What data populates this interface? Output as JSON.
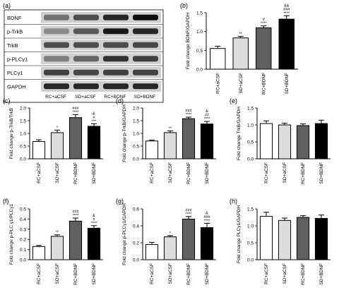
{
  "blot_panel": {
    "label": "(a)",
    "proteins": [
      "BDNF",
      "p-TrkB",
      "TrkB",
      "p-PLCγ1",
      "PLCγ1",
      "GAPDH"
    ],
    "lanes": [
      "RC+aCSF",
      "SD+aCSF",
      "RC+BDNF",
      "SD+BDNF"
    ]
  },
  "colors": {
    "bar_fills": [
      "#ffffff",
      "#dcdcdc",
      "#606060",
      "#000000"
    ],
    "stroke": "#000000"
  },
  "chart_data": [
    {
      "label": "(b)",
      "type": "bar",
      "categories": [
        "RC+aCSF",
        "SD+aCSF",
        "RC+BDNF",
        "SD+BDNF"
      ],
      "values": [
        0.55,
        0.83,
        1.1,
        1.33
      ],
      "errors": [
        0.06,
        0.04,
        0.05,
        0.09
      ],
      "annotations": [
        [],
        [
          "**"
        ],
        [
          "#",
          "****"
        ],
        [
          "&&",
          "###",
          "****"
        ]
      ],
      "ylabel": "Fold change BDNF/GAPDH",
      "ylim": [
        0,
        1.5
      ],
      "yticks": [
        "0.0",
        "0.5",
        "1.0",
        "1.5"
      ]
    },
    {
      "label": "(c)",
      "type": "bar",
      "categories": [
        "RC+aCSF",
        "SD+aCSF",
        "RC+BDNF",
        "SD+BDNF"
      ],
      "values": [
        0.68,
        1.03,
        1.62,
        1.28
      ],
      "errors": [
        0.07,
        0.1,
        0.12,
        0.1
      ],
      "annotations": [
        [],
        [
          "*"
        ],
        [
          "###",
          "****"
        ],
        [
          "&",
          "#",
          "***"
        ]
      ],
      "ylabel": "Fold change p-TrkB/TrkB",
      "ylim": [
        0,
        2.0
      ],
      "yticks": [
        "0.0",
        "0.5",
        "1.0",
        "1.5",
        "2.0"
      ]
    },
    {
      "label": "(d)",
      "type": "bar",
      "categories": [
        "RC+aCSF",
        "SD+aCSF",
        "RC+BDNF",
        "SD+BDNF"
      ],
      "values": [
        0.7,
        1.03,
        1.58,
        1.37
      ],
      "errors": [
        0.04,
        0.07,
        0.06,
        0.1
      ],
      "annotations": [
        [],
        [
          "**"
        ],
        [
          "###",
          "****"
        ],
        [
          "&",
          "##",
          "****"
        ]
      ],
      "ylabel": "Fold change p-TrkB/GAPDH",
      "ylim": [
        0,
        2.0
      ],
      "yticks": [
        "0.0",
        "0.5",
        "1.0",
        "1.5",
        "2.0"
      ]
    },
    {
      "label": "(e)",
      "type": "bar",
      "categories": [
        "RC+aCSF",
        "SD+aCSF",
        "RC+BDNF",
        "SD+BDNF"
      ],
      "values": [
        1.04,
        1.0,
        0.98,
        1.04
      ],
      "errors": [
        0.08,
        0.05,
        0.05,
        0.1
      ],
      "annotations": [
        [],
        [],
        [],
        []
      ],
      "ylabel": "Fold change TrkB/GAPDH",
      "ylim": [
        0,
        1.5
      ],
      "yticks": [
        "0.0",
        "0.5",
        "1.0",
        "1.5"
      ]
    },
    {
      "label": "(f)",
      "type": "bar",
      "categories": [
        "RC+aCSF",
        "SD+aCSF",
        "RC+BDNF",
        "SD+BDNF"
      ],
      "values": [
        0.13,
        0.23,
        0.38,
        0.31
      ],
      "errors": [
        0.01,
        0.015,
        0.03,
        0.025
      ],
      "annotations": [
        [],
        [
          "**"
        ],
        [
          "###",
          "****"
        ],
        [
          "&",
          "#",
          "****"
        ]
      ],
      "ylabel": "Fold change p-PLC γ1/PLCγ1",
      "ylim": [
        0,
        0.5
      ],
      "yticks": [
        "0.0",
        "0.1",
        "0.2",
        "0.3",
        "0.4",
        "0.5"
      ]
    },
    {
      "label": "(g)",
      "type": "bar",
      "categories": [
        "RC+aCSF",
        "SD+aCSF",
        "RC+BDNF",
        "SD+BDNF"
      ],
      "values": [
        0.18,
        0.27,
        0.48,
        0.38
      ],
      "errors": [
        0.025,
        0.015,
        0.03,
        0.05
      ],
      "annotations": [
        [],
        [
          "*"
        ],
        [
          "###",
          "****"
        ],
        [
          "&",
          "###",
          "****"
        ]
      ],
      "ylabel": "Fold change p-PLCγ1/GAPDH",
      "ylim": [
        0,
        0.6
      ],
      "yticks": [
        "0.0",
        "0.2",
        "0.4",
        "0.6"
      ]
    },
    {
      "label": "(h)",
      "type": "bar",
      "categories": [
        "RC+aCSF",
        "SD+aCSF",
        "RC+BDNF",
        "SD+BDNF"
      ],
      "values": [
        1.28,
        1.16,
        1.25,
        1.22
      ],
      "errors": [
        0.12,
        0.07,
        0.05,
        0.1
      ],
      "annotations": [
        [],
        [],
        [],
        []
      ],
      "ylabel": "Fold change PLCγ1/GAPDH",
      "ylim": [
        0,
        1.5
      ],
      "yticks": [
        "0.0",
        "0.5",
        "1.0",
        "1.5"
      ]
    }
  ]
}
